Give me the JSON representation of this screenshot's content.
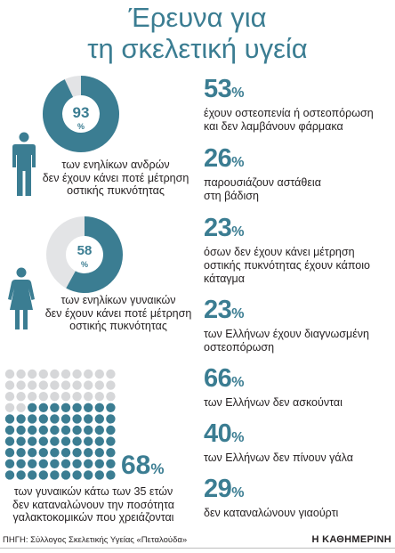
{
  "title": {
    "line1": "Έρευνα για",
    "line2": "τη σκελετική υγεία"
  },
  "colors": {
    "accent": "#3b7d92",
    "light": "#e3e4e6",
    "dot_light": "#d6d7d9"
  },
  "chart_data": [
    {
      "type": "pie",
      "id": "men",
      "value": 93,
      "label": "93",
      "unit": "%",
      "caption": [
        "των ενηλίκων ανδρών",
        "δεν έχουν κάνει ποτέ μέτρηση",
        "οστικής πυκνότητας"
      ]
    },
    {
      "type": "pie",
      "id": "women",
      "value": 58,
      "label": "58",
      "unit": "%",
      "caption": [
        "των ενηλίκων γυναικών",
        "δεν έχουν κάνει ποτέ μέτρηση",
        "οστικής πυκνότητας"
      ]
    },
    {
      "type": "dot-matrix",
      "id": "young-women",
      "value": 68,
      "total_dots": 100,
      "label": "68",
      "unit": "%",
      "caption": [
        "των γυναικών κάτω των 35 ετών",
        "δεν καταναλώνουν την ποσότητα",
        "γαλακτοκομικών που χρειάζονται"
      ]
    }
  ],
  "stats": [
    {
      "value": "53",
      "unit": "%",
      "lines": [
        "έχουν οστεοπενία ή οστεοπόρωση",
        "και δεν λαμβάνουν φάρμακα"
      ]
    },
    {
      "value": "26",
      "unit": "%",
      "lines": [
        "παρουσιάζουν αστάθεια",
        "στη βάδιση"
      ]
    },
    {
      "value": "23",
      "unit": "%",
      "lines": [
        "όσων δεν έχουν κάνει μέτρηση",
        "οστικής πυκνότητας έχουν κάποιο",
        "κάταγμα"
      ]
    },
    {
      "value": "23",
      "unit": "%",
      "lines": [
        "των Ελλήνων έχουν διαγνωσμένη",
        "οστεοπόρωση"
      ]
    },
    {
      "value": "66",
      "unit": "%",
      "lines": [
        "των Ελλήνων δεν ασκούνται"
      ]
    },
    {
      "value": "40",
      "unit": "%",
      "lines": [
        "των Ελλήνων δεν πίνουν γάλα"
      ]
    },
    {
      "value": "29",
      "unit": "%",
      "lines": [
        "δεν καταναλώνουν γιαούρτι"
      ]
    }
  ],
  "footer": {
    "source": "ΠΗΓΗ: Σύλλογος Σκελετικής Υγείας «Πεταλούδα»",
    "brand": "Η ΚΑΘΗΜΕΡΙΝΗ"
  }
}
